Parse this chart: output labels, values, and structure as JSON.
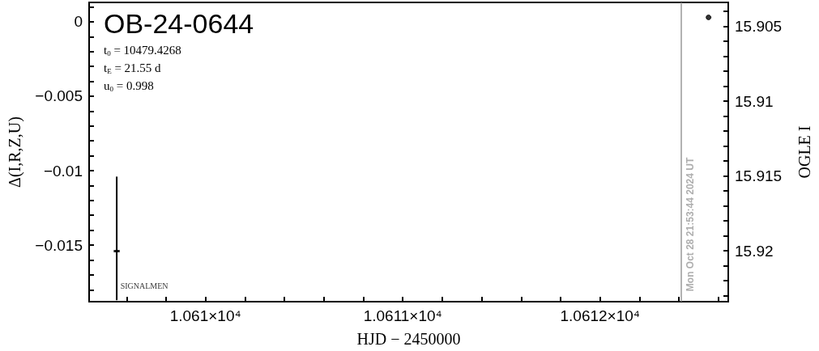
{
  "chart_data": {
    "type": "scatter",
    "title": "OB-24-0644",
    "annotations": [
      "t$_{0}$ = 10479.4268",
      "t$_{E}$ = 21.55 d",
      "u$_{0}$ = 0.998",
      {
        "text": "Mon Oct 28 21:53:44 2024 UT",
        "x": 10612.41,
        "y": -0.0135
      }
    ],
    "xlabel": "HJD − 2450000",
    "ylabel": "Δ(I,R,Z,U)",
    "y2label": "OGLE I",
    "xlim": [
      10609.41,
      10612.65
    ],
    "xticks": [
      {
        "value": 10609.6,
        "label": null
      },
      {
        "value": 10609.8,
        "label": null
      },
      {
        "value": 10610,
        "label": "1.061×10⁴"
      },
      {
        "value": 10610.2,
        "label": null
      },
      {
        "value": 10610.4,
        "label": null
      },
      {
        "value": 10610.6,
        "label": null
      },
      {
        "value": 10610.8,
        "label": null
      },
      {
        "value": 10611,
        "label": "1.0611×10⁴"
      },
      {
        "value": 10611.2,
        "label": null
      },
      {
        "value": 10611.4,
        "label": null
      },
      {
        "value": 10611.6,
        "label": null
      },
      {
        "value": 10611.8,
        "label": null
      },
      {
        "value": 10612,
        "label": "1.0612×10⁴"
      },
      {
        "value": 10612.2,
        "label": null
      },
      {
        "value": 10612.4,
        "label": null
      },
      {
        "value": 10612.6,
        "label": null
      }
    ],
    "ylim": [
      -0.0188,
      0.0013
    ],
    "yticks": [
      {
        "value": 0.001,
        "label": null
      },
      {
        "value": 0,
        "label": "0"
      },
      {
        "value": -0.001,
        "label": null
      },
      {
        "value": -0.002,
        "label": null
      },
      {
        "value": -0.003,
        "label": null
      },
      {
        "value": -0.004,
        "label": null
      },
      {
        "value": -0.005,
        "label": "−0.005"
      },
      {
        "value": -0.006,
        "label": null
      },
      {
        "value": -0.007,
        "label": null
      },
      {
        "value": -0.008,
        "label": null
      },
      {
        "value": -0.009,
        "label": null
      },
      {
        "value": -0.01,
        "label": "−0.01"
      },
      {
        "value": -0.011,
        "label": null
      },
      {
        "value": -0.012,
        "label": null
      },
      {
        "value": -0.013,
        "label": null
      },
      {
        "value": -0.014,
        "label": null
      },
      {
        "value": -0.015,
        "label": "−0.015"
      },
      {
        "value": -0.016,
        "label": null
      },
      {
        "value": -0.017,
        "label": null
      },
      {
        "value": -0.018,
        "label": null
      }
    ],
    "y2lim": [
      15.9234,
      15.9034
    ],
    "y2ticks": [
      {
        "value": 15.904,
        "label": null
      },
      15.905,
      {
        "value": 15.906,
        "label": null
      },
      {
        "value": 15.907,
        "label": null
      },
      {
        "value": 15.908,
        "label": null
      },
      {
        "value": 15.909,
        "label": null
      },
      15.91,
      {
        "value": 15.911,
        "label": null
      },
      {
        "value": 15.912,
        "label": null
      },
      {
        "value": 15.913,
        "label": null
      },
      {
        "value": 15.914,
        "label": null
      },
      15.915,
      {
        "value": 15.916,
        "label": null
      },
      {
        "value": 15.917,
        "label": null
      },
      {
        "value": 15.918,
        "label": null
      },
      {
        "value": 15.919,
        "label": null
      },
      15.92,
      {
        "value": 15.921,
        "label": null
      },
      {
        "value": 15.922,
        "label": null
      },
      {
        "value": 15.923,
        "label": null
      }
    ],
    "series": [
      {
        "name": "SIGNALMEN",
        "color": "#000000",
        "x": [
          10609.55
        ],
        "values": [
          -0.0154
        ],
        "errors": [
          [
            -0.0187,
            -0.0104
          ]
        ],
        "marker": "square"
      },
      {
        "color": "#000000",
        "x": [
          10612.55
        ],
        "values": [
          15.9044
        ],
        "axis": "y2",
        "marker": "circle"
      }
    ],
    "ref_lines": [
      {
        "axis": "x",
        "value": 10612.41,
        "color": "#999999"
      }
    ],
    "grid": false,
    "legend": false
  }
}
